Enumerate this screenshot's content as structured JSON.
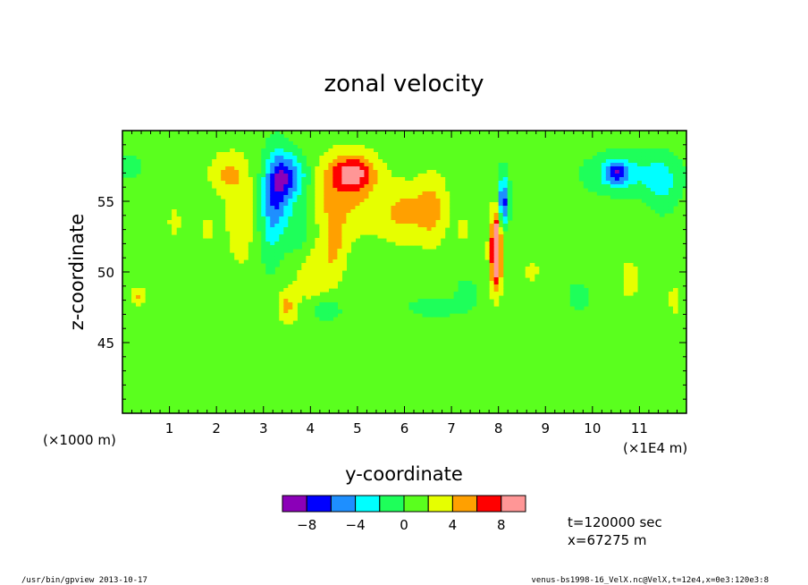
{
  "chart_data": {
    "type": "heatmap",
    "title": "zonal velocity",
    "xlabel": "y-coordinate",
    "ylabel": "z-coordinate",
    "x_unit": "(×1E4 m)",
    "y_unit": "(×1000 m)",
    "xlim": [
      0,
      12
    ],
    "ylim": [
      40,
      60
    ],
    "x_ticks": [
      "1",
      "2",
      "3",
      "4",
      "5",
      "6",
      "7",
      "8",
      "9",
      "10",
      "11"
    ],
    "y_ticks": [
      "45",
      "50",
      "55"
    ],
    "levels": [
      -10,
      -8,
      -6,
      -4,
      -2,
      0,
      2,
      4,
      6,
      8,
      10
    ],
    "colorbar_labels": [
      "−8",
      "−4",
      "0",
      "4",
      "8"
    ],
    "colorbar_colors": [
      "#8b00b8",
      "#0000ff",
      "#1e8fff",
      "#00ffff",
      "#1eff5a",
      "#5aff1e",
      "#e6ff00",
      "#ffa000",
      "#ff0000",
      "#ff9696"
    ],
    "background_value": 1,
    "features": [
      {
        "x": 3.3,
        "y": 56.0,
        "rx": 0.28,
        "ry": 2.8,
        "v": -6.2
      },
      {
        "x": 3.6,
        "y": 56.8,
        "rx": 0.35,
        "ry": 1.5,
        "v": -5.8
      },
      {
        "x": 3.15,
        "y": 53.5,
        "rx": 0.25,
        "ry": 3.5,
        "v": -3
      },
      {
        "x": 3.75,
        "y": 53.0,
        "rx": 0.3,
        "ry": 2.5,
        "v": -2.5
      },
      {
        "x": 2.2,
        "y": 57.0,
        "rx": 0.35,
        "ry": 1.4,
        "v": 3
      },
      {
        "x": 2.5,
        "y": 54.0,
        "rx": 0.3,
        "ry": 3.5,
        "v": 2.5
      },
      {
        "x": 4.9,
        "y": 57.0,
        "rx": 0.45,
        "ry": 1.2,
        "v": 6.3
      },
      {
        "x": 4.7,
        "y": 55.5,
        "rx": 0.7,
        "ry": 2.8,
        "v": 3.5
      },
      {
        "x": 4.5,
        "y": 52.0,
        "rx": 0.25,
        "ry": 2.5,
        "v": 3
      },
      {
        "x": 4.0,
        "y": 50.0,
        "rx": 0.4,
        "ry": 2.0,
        "v": 2.5
      },
      {
        "x": 6.0,
        "y": 54.2,
        "rx": 0.55,
        "ry": 2.0,
        "v": 3.5
      },
      {
        "x": 6.6,
        "y": 54.5,
        "rx": 0.3,
        "ry": 2.5,
        "v": 3
      },
      {
        "x": 7.95,
        "y": 51.5,
        "rx": 0.08,
        "ry": 2.2,
        "v": 8.5
      },
      {
        "x": 7.95,
        "y": 51.5,
        "rx": 0.15,
        "ry": 3.0,
        "v": 5
      },
      {
        "x": 8.1,
        "y": 55.0,
        "rx": 0.08,
        "ry": 1.5,
        "v": -6.2
      },
      {
        "x": 8.1,
        "y": 55.0,
        "rx": 0.15,
        "ry": 2.5,
        "v": -3
      },
      {
        "x": 10.5,
        "y": 57.0,
        "rx": 0.25,
        "ry": 0.8,
        "v": -6.2
      },
      {
        "x": 10.8,
        "y": 57.0,
        "rx": 1.0,
        "ry": 1.6,
        "v": -3.2
      },
      {
        "x": 11.5,
        "y": 56.0,
        "rx": 0.35,
        "ry": 2.0,
        "v": -2.5
      },
      {
        "x": 0.15,
        "y": 57.5,
        "rx": 0.25,
        "ry": 0.8,
        "v": -2.5
      },
      {
        "x": 4.35,
        "y": 47.3,
        "rx": 0.3,
        "ry": 0.7,
        "v": -2.5
      },
      {
        "x": 6.6,
        "y": 47.5,
        "rx": 0.5,
        "ry": 0.6,
        "v": -2.5
      },
      {
        "x": 9.7,
        "y": 48.3,
        "rx": 0.2,
        "ry": 0.8,
        "v": -3
      },
      {
        "x": 7.3,
        "y": 48.5,
        "rx": 0.2,
        "ry": 1.0,
        "v": -2.5
      },
      {
        "x": 0.35,
        "y": 48.3,
        "rx": 0.15,
        "ry": 0.6,
        "v": 3.2
      },
      {
        "x": 3.5,
        "y": 47.5,
        "rx": 0.2,
        "ry": 1.2,
        "v": 3.5
      },
      {
        "x": 8.7,
        "y": 50.0,
        "rx": 0.12,
        "ry": 0.5,
        "v": 3
      },
      {
        "x": 10.8,
        "y": 49.5,
        "rx": 0.15,
        "ry": 1.2,
        "v": 3
      },
      {
        "x": 11.75,
        "y": 48.0,
        "rx": 0.1,
        "ry": 0.8,
        "v": 3
      },
      {
        "x": 1.1,
        "y": 53.5,
        "rx": 0.1,
        "ry": 1.0,
        "v": 3
      },
      {
        "x": 1.8,
        "y": 53.0,
        "rx": 0.1,
        "ry": 0.8,
        "v": 3
      },
      {
        "x": 7.25,
        "y": 53.0,
        "rx": 0.12,
        "ry": 0.7,
        "v": 3
      },
      {
        "x": 6.0,
        "y": 44.0,
        "rx": 5.0,
        "ry": 2.5,
        "v": -0.5
      },
      {
        "x": 3.0,
        "y": 41.0,
        "rx": 2.5,
        "ry": 1.5,
        "v": -0.8
      },
      {
        "x": 9.0,
        "y": 42.0,
        "rx": 3.0,
        "ry": 1.8,
        "v": -0.5
      },
      {
        "x": 1.5,
        "y": 50.0,
        "rx": 0.5,
        "ry": 4.0,
        "v": -0.5
      },
      {
        "x": 7.8,
        "y": 46.0,
        "rx": 0.8,
        "ry": 2.5,
        "v": -0.5
      },
      {
        "x": 10.0,
        "y": 52.0,
        "rx": 0.5,
        "ry": 3.0,
        "v": -0.5
      }
    ]
  },
  "annotations": {
    "time": "t=120000 sec",
    "position": "x=67275 m"
  },
  "footer": {
    "left": "/usr/bin/gpview  2013-10-17",
    "right": "venus-bs1998-16_VelX.nc@VelX,t=12e4,x=0e3:120e3:8"
  }
}
